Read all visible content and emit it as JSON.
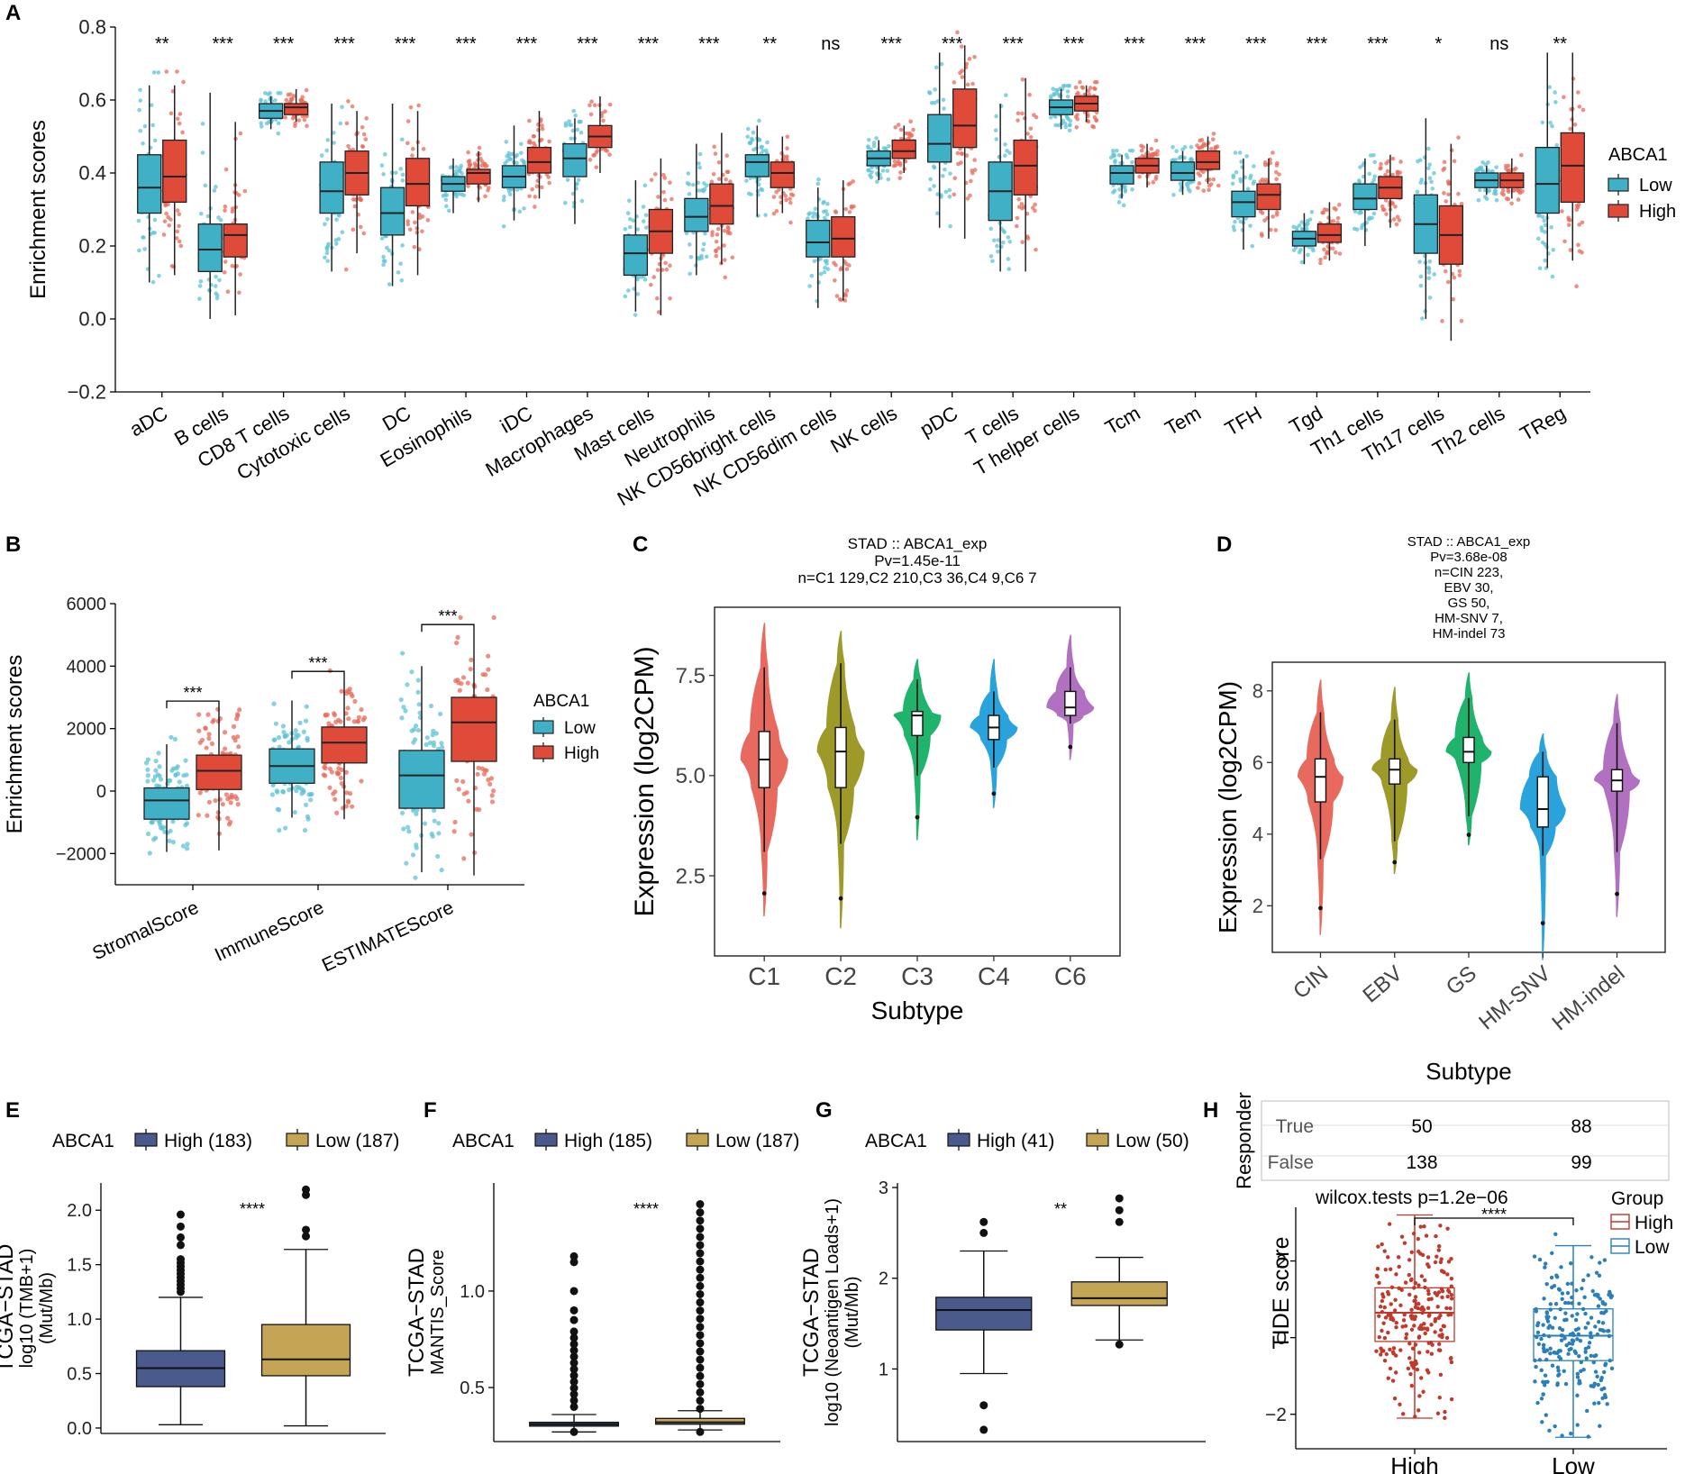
{
  "colors": {
    "low": "#3fb0c6",
    "high": "#e04a38",
    "lowPt": "#5ec3d6",
    "highPt": "#e8695a",
    "navy": "#4a5a8c",
    "gold": "#c3a555",
    "boxBlue": "#2a7fba",
    "boxRed": "#c0392b",
    "violin": [
      "#e86a5f",
      "#9e9a2a",
      "#1fb36b",
      "#2aa2dc",
      "#b270c0"
    ]
  },
  "panels": {
    "A": {
      "letter": "A",
      "chart_data": {
        "type": "box",
        "ylabel": "Enrichment scores",
        "ylim": [
          -0.2,
          0.8
        ],
        "yticks": [
          "0.8",
          "0.6",
          "0.4",
          "0.2",
          "0.0",
          "−0.2"
        ],
        "legend": {
          "title": "ABCA1",
          "items": [
            "Low",
            "High"
          ]
        },
        "categories": [
          "aDC",
          "B cells",
          "CD8 T cells",
          "Cytotoxic cells",
          "DC",
          "Eosinophils",
          "iDC",
          "Macrophages",
          "Mast cells",
          "Neutrophils",
          "NK CD56bright cells",
          "NK CD56dim cells",
          "NK cells",
          "pDC",
          "T cells",
          "T helper cells",
          "Tcm",
          "Tem",
          "TFH",
          "Tgd",
          "Th1 cells",
          "Th17 cells",
          "Th2 cells",
          "TReg"
        ],
        "sig": [
          "**",
          "***",
          "***",
          "***",
          "***",
          "***",
          "***",
          "***",
          "***",
          "***",
          "**",
          "ns",
          "***",
          "***",
          "***",
          "***",
          "***",
          "***",
          "***",
          "***",
          "***",
          "*",
          "ns",
          "**"
        ],
        "series": [
          {
            "name": "Low",
            "stats": [
              [
                0.1,
                0.29,
                0.36,
                0.45,
                0.64
              ],
              [
                0.0,
                0.13,
                0.19,
                0.26,
                0.62
              ],
              [
                0.52,
                0.55,
                0.57,
                0.59,
                0.61
              ],
              [
                0.13,
                0.29,
                0.35,
                0.43,
                0.59
              ],
              [
                0.09,
                0.23,
                0.29,
                0.36,
                0.59
              ],
              [
                0.29,
                0.35,
                0.37,
                0.39,
                0.44
              ],
              [
                0.27,
                0.36,
                0.39,
                0.42,
                0.53
              ],
              [
                0.26,
                0.39,
                0.44,
                0.48,
                0.55
              ],
              [
                0.02,
                0.12,
                0.18,
                0.23,
                0.38
              ],
              [
                0.12,
                0.24,
                0.28,
                0.33,
                0.48
              ],
              [
                0.28,
                0.39,
                0.43,
                0.45,
                0.53
              ],
              [
                0.03,
                0.17,
                0.21,
                0.27,
                0.36
              ],
              [
                0.38,
                0.42,
                0.44,
                0.46,
                0.49
              ],
              [
                0.25,
                0.43,
                0.48,
                0.56,
                0.73
              ],
              [
                0.13,
                0.27,
                0.35,
                0.43,
                0.59
              ],
              [
                0.52,
                0.56,
                0.58,
                0.6,
                0.63
              ],
              [
                0.33,
                0.37,
                0.4,
                0.42,
                0.45
              ],
              [
                0.34,
                0.38,
                0.4,
                0.43,
                0.46
              ],
              [
                0.19,
                0.28,
                0.32,
                0.35,
                0.44
              ],
              [
                0.15,
                0.2,
                0.22,
                0.24,
                0.29
              ],
              [
                0.2,
                0.3,
                0.33,
                0.37,
                0.44
              ],
              [
                0.0,
                0.18,
                0.26,
                0.34,
                0.55
              ],
              [
                0.34,
                0.36,
                0.38,
                0.4,
                0.42
              ],
              [
                0.14,
                0.29,
                0.37,
                0.47,
                0.73
              ]
            ]
          },
          {
            "name": "High",
            "stats": [
              [
                0.12,
                0.32,
                0.39,
                0.49,
                0.64
              ],
              [
                0.01,
                0.17,
                0.23,
                0.26,
                0.54
              ],
              [
                0.54,
                0.56,
                0.58,
                0.59,
                0.63
              ],
              [
                0.18,
                0.34,
                0.4,
                0.46,
                0.57
              ],
              [
                0.12,
                0.31,
                0.37,
                0.44,
                0.57
              ],
              [
                0.32,
                0.37,
                0.4,
                0.41,
                0.46
              ],
              [
                0.33,
                0.4,
                0.43,
                0.47,
                0.57
              ],
              [
                0.4,
                0.47,
                0.5,
                0.53,
                0.61
              ],
              [
                0.01,
                0.18,
                0.24,
                0.3,
                0.44
              ],
              [
                0.15,
                0.26,
                0.31,
                0.37,
                0.51
              ],
              [
                0.29,
                0.36,
                0.4,
                0.43,
                0.5
              ],
              [
                0.05,
                0.17,
                0.22,
                0.28,
                0.38
              ],
              [
                0.4,
                0.44,
                0.46,
                0.49,
                0.53
              ],
              [
                0.22,
                0.47,
                0.53,
                0.63,
                0.75
              ],
              [
                0.13,
                0.34,
                0.42,
                0.49,
                0.66
              ],
              [
                0.54,
                0.57,
                0.59,
                0.61,
                0.64
              ],
              [
                0.36,
                0.4,
                0.42,
                0.44,
                0.48
              ],
              [
                0.37,
                0.41,
                0.43,
                0.46,
                0.5
              ],
              [
                0.22,
                0.3,
                0.34,
                0.37,
                0.44
              ],
              [
                0.16,
                0.21,
                0.23,
                0.26,
                0.32
              ],
              [
                0.25,
                0.33,
                0.36,
                0.39,
                0.45
              ],
              [
                -0.06,
                0.15,
                0.23,
                0.31,
                0.48
              ],
              [
                0.33,
                0.36,
                0.38,
                0.4,
                0.44
              ],
              [
                0.16,
                0.32,
                0.42,
                0.51,
                0.73
              ]
            ]
          }
        ]
      }
    },
    "B": {
      "letter": "B",
      "chart_data": {
        "type": "box",
        "ylabel": "Enrichment scores",
        "ylim": [
          -3000,
          6000
        ],
        "yticks": [
          "6000",
          "4000",
          "2000",
          "0",
          "−2000"
        ],
        "categories": [
          "StromalScore",
          "ImmuneScore",
          "ESTIMATEScore"
        ],
        "sig": [
          "***",
          "***",
          "***"
        ],
        "legend": {
          "title": "ABCA1",
          "items": [
            "Low",
            "High"
          ]
        },
        "series": [
          {
            "name": "Low",
            "stats": [
              [
                -1950,
                -900,
                -300,
                100,
                1500
              ],
              [
                -850,
                250,
                800,
                1350,
                2900
              ],
              [
                -2600,
                -550,
                500,
                1300,
                4000
              ]
            ]
          },
          {
            "name": "High",
            "stats": [
              [
                -1900,
                50,
                650,
                1150,
                2650
              ],
              [
                -900,
                900,
                1550,
                2050,
                3600
              ],
              [
                -2700,
                950,
                2200,
                3000,
                5100
              ]
            ]
          }
        ]
      }
    },
    "C": {
      "letter": "C",
      "title_lines": [
        "STAD :: ABCA1_exp",
        "Pv=1.45e-11",
        "n=C1 129,C2 210,C3 36,C4 9,C6 7"
      ],
      "chart_data": {
        "type": "violin",
        "xlabel": "Subtype",
        "ylabel": "Expression (log2CPM)",
        "ylim": [
          0.5,
          9.2
        ],
        "yticks": [
          "7.5",
          "5.0",
          "2.5"
        ],
        "categories": [
          "C1",
          "C2",
          "C3",
          "C4",
          "C6"
        ],
        "stats": [
          [
            1.5,
            3.1,
            4.7,
            5.4,
            6.1,
            7.7,
            8.8
          ],
          [
            1.2,
            3.3,
            4.7,
            5.6,
            6.2,
            7.8,
            8.6
          ],
          [
            3.4,
            5.0,
            6.0,
            6.5,
            6.6,
            7.4,
            7.9
          ],
          [
            4.2,
            5.2,
            5.9,
            6.2,
            6.5,
            7.1,
            7.9
          ],
          [
            5.4,
            6.3,
            6.5,
            6.7,
            7.1,
            7.7,
            8.5
          ]
        ]
      }
    },
    "D": {
      "letter": "D",
      "title_lines": [
        "STAD :: ABCA1_exp",
        "Pv=3.68e-08",
        "n=CIN 223,",
        "EBV 30,",
        "GS 50,",
        "HM-SNV 7,",
        "HM-indel 73"
      ],
      "chart_data": {
        "type": "violin",
        "xlabel": "Subtype",
        "ylabel": "Expression (log2CPM)",
        "ylim": [
          0.7,
          8.8
        ],
        "yticks": [
          "8",
          "6",
          "4",
          "2"
        ],
        "categories": [
          "CIN",
          "EBV",
          "GS",
          "HM-SNV",
          "HM-indel"
        ],
        "stats": [
          [
            1.2,
            3.3,
            4.9,
            5.6,
            6.1,
            7.4,
            8.3
          ],
          [
            2.9,
            3.8,
            5.4,
            5.8,
            6.1,
            7.2,
            8.1
          ],
          [
            3.7,
            4.5,
            6.0,
            6.3,
            6.7,
            7.8,
            8.5
          ],
          [
            0.5,
            3.4,
            4.2,
            4.7,
            5.6,
            6.3,
            6.8
          ],
          [
            1.7,
            3.5,
            5.2,
            5.5,
            5.8,
            7.1,
            7.9
          ]
        ]
      }
    },
    "E": {
      "letter": "E",
      "legend": {
        "title": "ABCA1",
        "items": [
          "High (183)",
          "Low (187)"
        ]
      },
      "sig": "****",
      "chart_data": {
        "type": "box",
        "ylabel_lines": [
          "TCGA−STAD",
          "log10 (TMB+1)",
          "(Mut/Mb)"
        ],
        "ylim": [
          -0.05,
          2.25
        ],
        "yticks": [
          "2.0",
          "1.5",
          "1.0",
          "0.5",
          "0.0"
        ],
        "categories": [
          "High",
          "Low"
        ],
        "stats": [
          [
            0.03,
            0.38,
            0.55,
            0.71,
            1.2
          ],
          [
            0.02,
            0.48,
            0.63,
            0.95,
            1.64
          ]
        ]
      }
    },
    "F": {
      "letter": "F",
      "legend": {
        "title": "ABCA1",
        "items": [
          "High (185)",
          "Low (187)"
        ]
      },
      "sig": "****",
      "chart_data": {
        "type": "box",
        "ylabel_lines": [
          "TCGA−STAD",
          "MANTIS_Score"
        ],
        "ylim": [
          0.22,
          1.56
        ],
        "yticks": [
          "1.0",
          "0.5"
        ],
        "categories": [
          "High",
          "Low"
        ],
        "stats": [
          [
            0.27,
            0.3,
            0.31,
            0.32,
            0.36
          ],
          [
            0.28,
            0.31,
            0.32,
            0.34,
            0.38
          ]
        ]
      }
    },
    "G": {
      "letter": "G",
      "legend": {
        "title": "ABCA1",
        "items": [
          "High (41)",
          "Low (50)"
        ]
      },
      "sig": "**",
      "chart_data": {
        "type": "box",
        "ylabel_lines": [
          "TCGA−STAD",
          "log10 (Neoantigen Loads+1)",
          "(Mut/Mb)"
        ],
        "ylim": [
          0.2,
          3.05
        ],
        "yticks": [
          "3",
          "2",
          "1"
        ],
        "categories": [
          "High",
          "Low"
        ],
        "stats": [
          [
            0.95,
            1.43,
            1.65,
            1.79,
            2.3
          ],
          [
            1.32,
            1.7,
            1.78,
            1.96,
            2.23
          ]
        ]
      }
    },
    "H": {
      "letter": "H",
      "table": {
        "ylabel": "Responder",
        "rows": [
          {
            "label": "True",
            "values": [
              "50",
              "88"
            ]
          },
          {
            "label": "False",
            "values": [
              "138",
              "99"
            ]
          }
        ]
      },
      "test": "wilcox.tests p=1.2e−06",
      "sig": "****",
      "legend": {
        "title": "Group",
        "items": [
          "High",
          "Low"
        ]
      },
      "chart_data": {
        "type": "box",
        "ylabel": "TIDE score",
        "ylim": [
          -2.9,
          3.4
        ],
        "yticks": [
          "2",
          "0",
          "−2"
        ],
        "categories": [
          "High",
          "Low"
        ],
        "stats": [
          [
            -2.1,
            -0.1,
            0.65,
            1.3,
            3.2
          ],
          [
            -2.6,
            -0.6,
            0.05,
            0.75,
            2.4
          ]
        ]
      }
    }
  }
}
